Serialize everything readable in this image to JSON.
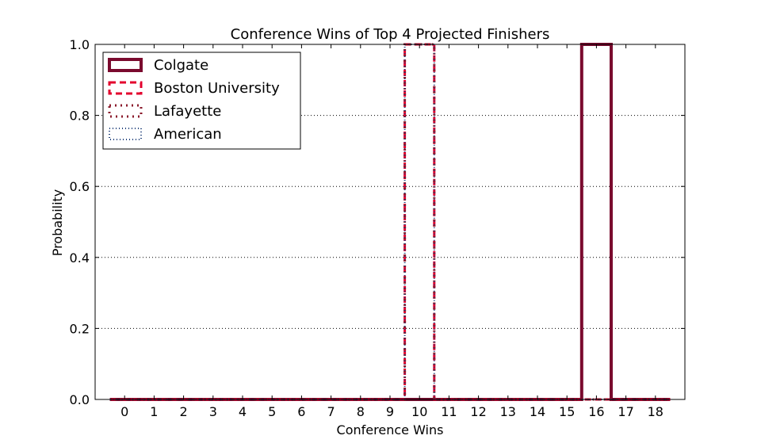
{
  "chart_data": {
    "type": "step",
    "title": "Conference Wins of Top 4 Projected Finishers",
    "xlabel": "Conference Wins",
    "ylabel": "Probability",
    "x_ticks": [
      0,
      1,
      2,
      3,
      4,
      5,
      6,
      7,
      8,
      9,
      10,
      11,
      12,
      13,
      14,
      15,
      16,
      17,
      18
    ],
    "y_ticks": [
      "0.0",
      "0.2",
      "0.4",
      "0.6",
      "0.8",
      "1.0"
    ],
    "xlim": [
      -1,
      19
    ],
    "ylim": [
      0,
      1
    ],
    "grid": "horizontal-dotted",
    "legend_position": "top-left",
    "series": [
      {
        "name": "Colgate",
        "color": "#7a0a2e",
        "style": "solid",
        "values": [
          0,
          0,
          0,
          0,
          0,
          0,
          0,
          0,
          0,
          0,
          0,
          0,
          0,
          0,
          0,
          0,
          1.0,
          0,
          0
        ]
      },
      {
        "name": "Boston University",
        "color": "#e3002d",
        "style": "dashed",
        "values": [
          0,
          0,
          0,
          0,
          0,
          0,
          0,
          0,
          0,
          0,
          1.0,
          0,
          0,
          0,
          0,
          0,
          0,
          0,
          0
        ]
      },
      {
        "name": "Lafayette",
        "color": "#8b1a2b",
        "style": "dotted",
        "values": [
          0,
          0,
          0,
          0,
          0,
          0,
          0,
          0,
          0,
          0,
          1.0,
          0,
          0,
          0,
          0,
          0,
          0,
          0,
          0
        ]
      },
      {
        "name": "American",
        "color": "#1f3f7a",
        "style": "dotted-fine",
        "values": [
          0,
          0,
          0,
          0,
          0,
          0,
          0,
          0,
          0,
          0,
          1.0,
          0,
          0,
          0,
          0,
          0,
          0,
          0,
          0
        ]
      }
    ]
  }
}
